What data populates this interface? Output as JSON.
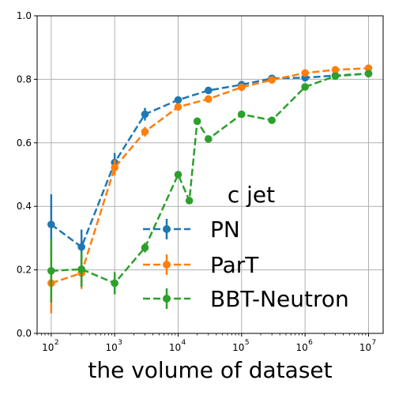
{
  "chart_data": {
    "type": "line",
    "xlabel": "the volume of dataset",
    "ylabel": "",
    "xscale": "log",
    "xlim": [
      60,
      17000000
    ],
    "ylim": [
      0,
      1.0
    ],
    "grid": true,
    "legend": {
      "title": "c jet",
      "placement": "lower-right"
    },
    "yticks": [
      "0.0",
      "0.2",
      "0.4",
      "0.6",
      "0.8",
      "1.0"
    ],
    "xticks": [
      {
        "base": "10",
        "exp": "2",
        "value": 100
      },
      {
        "base": "10",
        "exp": "3",
        "value": 1000
      },
      {
        "base": "10",
        "exp": "4",
        "value": 10000
      },
      {
        "base": "10",
        "exp": "5",
        "value": 100000
      },
      {
        "base": "10",
        "exp": "6",
        "value": 1000000
      },
      {
        "base": "10",
        "exp": "7",
        "value": 10000000
      }
    ],
    "series": [
      {
        "name": "PN",
        "color": "#1f77b4",
        "points": [
          {
            "x": 100,
            "y": 0.343,
            "err": 0.095
          },
          {
            "x": 300,
            "y": 0.272,
            "err": 0.055
          },
          {
            "x": 1000,
            "y": 0.538,
            "err": 0.03
          },
          {
            "x": 3000,
            "y": 0.69,
            "err": 0.02
          },
          {
            "x": 10000,
            "y": 0.735,
            "err": 0.01
          },
          {
            "x": 30000,
            "y": 0.765,
            "err": 0.008
          },
          {
            "x": 100000,
            "y": 0.783,
            "err": 0.006
          },
          {
            "x": 300000,
            "y": 0.803,
            "err": 0.005
          },
          {
            "x": 1000000,
            "y": 0.805,
            "err": 0.004
          },
          {
            "x": 3000000,
            "y": 0.812,
            "err": 0.004
          },
          {
            "x": 10000000,
            "y": 0.818,
            "err": 0.003
          }
        ]
      },
      {
        "name": "ParT",
        "color": "#ff7f0e",
        "points": [
          {
            "x": 100,
            "y": 0.158,
            "err": 0.095
          },
          {
            "x": 300,
            "y": 0.19,
            "err": 0.05
          },
          {
            "x": 1000,
            "y": 0.522,
            "err": 0.025
          },
          {
            "x": 3000,
            "y": 0.635,
            "err": 0.015
          },
          {
            "x": 10000,
            "y": 0.713,
            "err": 0.01
          },
          {
            "x": 30000,
            "y": 0.738,
            "err": 0.008
          },
          {
            "x": 100000,
            "y": 0.775,
            "err": 0.006
          },
          {
            "x": 300000,
            "y": 0.798,
            "err": 0.005
          },
          {
            "x": 1000000,
            "y": 0.82,
            "err": 0.004
          },
          {
            "x": 3000000,
            "y": 0.83,
            "err": 0.004
          },
          {
            "x": 10000000,
            "y": 0.835,
            "err": 0.003
          }
        ]
      },
      {
        "name": "BBT-Neutron",
        "color": "#2ca02c",
        "points": [
          {
            "x": 100,
            "y": 0.197,
            "err": 0.1
          },
          {
            "x": 300,
            "y": 0.202,
            "err": 0.055
          },
          {
            "x": 1000,
            "y": 0.158,
            "err": 0.035
          },
          {
            "x": 3000,
            "y": 0.27,
            "err": 0.015
          },
          {
            "x": 10000,
            "y": 0.5,
            "err": 0.01
          },
          {
            "x": 15000,
            "y": 0.418,
            "err": 0.01
          },
          {
            "x": 20000,
            "y": 0.668,
            "err": 0.01
          },
          {
            "x": 30000,
            "y": 0.612,
            "err": 0.008
          },
          {
            "x": 100000,
            "y": 0.69,
            "err": 0.006
          },
          {
            "x": 300000,
            "y": 0.671,
            "err": 0.005
          },
          {
            "x": 1000000,
            "y": 0.776,
            "err": 0.004
          },
          {
            "x": 3000000,
            "y": 0.81,
            "err": 0.004
          },
          {
            "x": 10000000,
            "y": 0.818,
            "err": 0.003
          }
        ]
      }
    ]
  }
}
